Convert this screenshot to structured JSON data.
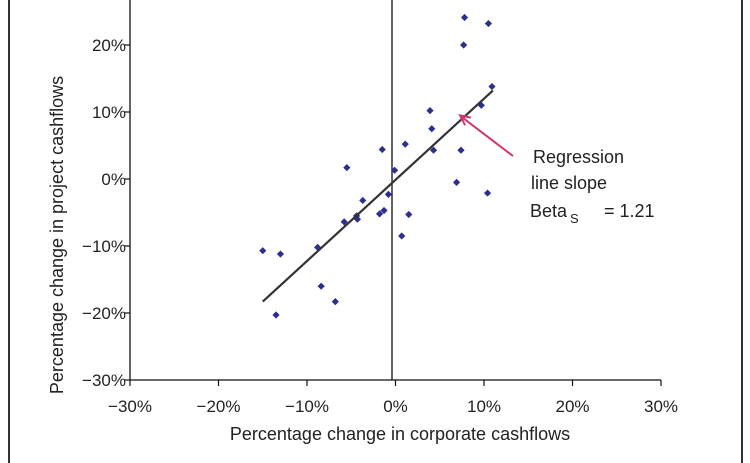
{
  "chart_data": {
    "type": "scatter",
    "title": "",
    "xlabel": "Percentage change in corporate cashflows",
    "ylabel": "Percentage change in project cashflows",
    "xlim": [
      -30,
      30
    ],
    "ylim": [
      -30,
      30
    ],
    "x_ticks": [
      "−30%",
      "−20%",
      "−10%",
      "0%",
      "10%",
      "20%",
      "30%"
    ],
    "x_tick_values": [
      -30,
      -20,
      -10,
      0,
      10,
      20,
      30
    ],
    "y_ticks": [
      "20%",
      "10%",
      "0%",
      "−10%",
      "−20%",
      "−30%"
    ],
    "y_tick_values": [
      20,
      10,
      0,
      -10,
      -20,
      -30
    ],
    "grid": false,
    "point_color": "#2b2f8f",
    "line_color": "#333333",
    "arrow_color": "#d6336c",
    "points": [
      {
        "x": -15.0,
        "y": -10.7
      },
      {
        "x": -13.0,
        "y": -11.2
      },
      {
        "x": -13.5,
        "y": -20.3
      },
      {
        "x": -8.8,
        "y": -10.2
      },
      {
        "x": -8.4,
        "y": -16.0
      },
      {
        "x": -6.8,
        "y": -18.3
      },
      {
        "x": -5.5,
        "y": 1.7
      },
      {
        "x": -5.8,
        "y": -6.4
      },
      {
        "x": -4.4,
        "y": -5.5
      },
      {
        "x": -4.3,
        "y": -6.0
      },
      {
        "x": -3.7,
        "y": -3.2
      },
      {
        "x": -1.8,
        "y": -5.2
      },
      {
        "x": -1.5,
        "y": 4.4
      },
      {
        "x": -1.3,
        "y": -4.7
      },
      {
        "x": -0.8,
        "y": -2.3
      },
      {
        "x": -0.1,
        "y": 1.3
      },
      {
        "x": 0.7,
        "y": -8.5
      },
      {
        "x": 1.1,
        "y": 5.2
      },
      {
        "x": 1.5,
        "y": -5.3
      },
      {
        "x": 3.9,
        "y": 10.2
      },
      {
        "x": 4.1,
        "y": 7.5
      },
      {
        "x": 4.3,
        "y": 4.3
      },
      {
        "x": 6.9,
        "y": -0.5
      },
      {
        "x": 7.4,
        "y": 4.3
      },
      {
        "x": 7.7,
        "y": 20.0
      },
      {
        "x": 7.8,
        "y": 24.1
      },
      {
        "x": 9.7,
        "y": 11.0
      },
      {
        "x": 10.4,
        "y": -2.1
      },
      {
        "x": 10.5,
        "y": 23.2
      },
      {
        "x": 10.9,
        "y": 13.8
      }
    ],
    "regression": {
      "x": [
        -15,
        11
      ],
      "y": [
        -18.3,
        13.2
      ],
      "slope": 1.21
    },
    "annotation": {
      "lines": [
        "Regression",
        "line slope"
      ],
      "beta_label": "Beta",
      "beta_subscript": "S",
      "beta_value": "= 1.21",
      "points_to": {
        "x": 7.3,
        "y": 9.5
      }
    }
  }
}
